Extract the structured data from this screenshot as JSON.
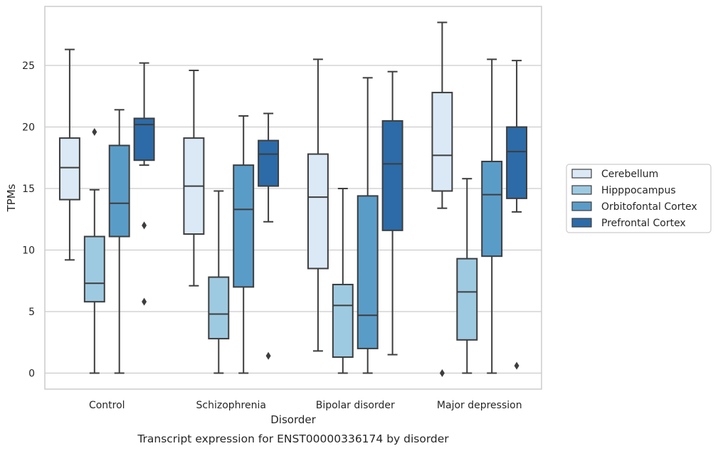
{
  "chart_data": {
    "type": "box",
    "title": "",
    "caption": "Transcript expression for ENST00000336174 by disorder",
    "xlabel": "Disorder",
    "ylabel": "TPMs",
    "ylim": [
      -1.3,
      29.8
    ],
    "yticks": [
      0,
      5,
      10,
      15,
      20,
      25
    ],
    "grid": "horizontal",
    "legend_position": "right",
    "categories": [
      "Control",
      "Schizophrenia",
      "Bipolar disorder",
      "Major depression"
    ],
    "series": [
      {
        "name": "Cerebellum",
        "color": "#dbe9f6",
        "boxes": [
          {
            "whisker_low": 9.2,
            "q1": 14.1,
            "median": 16.7,
            "q3": 19.1,
            "whisker_high": 26.3,
            "outliers": []
          },
          {
            "whisker_low": 7.1,
            "q1": 11.3,
            "median": 15.2,
            "q3": 19.1,
            "whisker_high": 24.6,
            "outliers": []
          },
          {
            "whisker_low": 1.8,
            "q1": 8.5,
            "median": 14.3,
            "q3": 17.8,
            "whisker_high": 25.5,
            "outliers": []
          },
          {
            "whisker_low": 13.4,
            "q1": 14.8,
            "median": 17.7,
            "q3": 22.8,
            "whisker_high": 28.5,
            "outliers": [
              0.0
            ]
          }
        ]
      },
      {
        "name": "Hipppocampus",
        "color": "#9ecae1",
        "boxes": [
          {
            "whisker_low": 0.0,
            "q1": 5.8,
            "median": 7.3,
            "q3": 11.1,
            "whisker_high": 14.9,
            "outliers": [
              19.6
            ]
          },
          {
            "whisker_low": 0.0,
            "q1": 2.8,
            "median": 4.8,
            "q3": 7.8,
            "whisker_high": 14.8,
            "outliers": []
          },
          {
            "whisker_low": 0.0,
            "q1": 1.3,
            "median": 5.5,
            "q3": 7.2,
            "whisker_high": 15.0,
            "outliers": []
          },
          {
            "whisker_low": 0.0,
            "q1": 2.7,
            "median": 6.6,
            "q3": 9.3,
            "whisker_high": 15.8,
            "outliers": []
          }
        ]
      },
      {
        "name": "Orbitofontal Cortex",
        "color": "#5a9cc8",
        "boxes": [
          {
            "whisker_low": 0.0,
            "q1": 11.1,
            "median": 13.8,
            "q3": 18.5,
            "whisker_high": 21.4,
            "outliers": []
          },
          {
            "whisker_low": 0.0,
            "q1": 7.0,
            "median": 13.3,
            "q3": 16.9,
            "whisker_high": 20.9,
            "outliers": []
          },
          {
            "whisker_low": 0.0,
            "q1": 2.0,
            "median": 4.7,
            "q3": 14.4,
            "whisker_high": 24.0,
            "outliers": []
          },
          {
            "whisker_low": 0.0,
            "q1": 9.5,
            "median": 14.5,
            "q3": 17.2,
            "whisker_high": 25.5,
            "outliers": []
          }
        ]
      },
      {
        "name": "Prefrontal Cortex",
        "color": "#2c6ba8",
        "boxes": [
          {
            "whisker_low": 16.9,
            "q1": 17.3,
            "median": 20.2,
            "q3": 20.7,
            "whisker_high": 25.2,
            "outliers": [
              12.0,
              5.8
            ]
          },
          {
            "whisker_low": 12.3,
            "q1": 15.2,
            "median": 17.8,
            "q3": 18.9,
            "whisker_high": 21.1,
            "outliers": [
              1.4
            ]
          },
          {
            "whisker_low": 1.5,
            "q1": 11.6,
            "median": 17.0,
            "q3": 20.5,
            "whisker_high": 24.5,
            "outliers": []
          },
          {
            "whisker_low": 13.1,
            "q1": 14.2,
            "median": 18.0,
            "q3": 20.0,
            "whisker_high": 25.4,
            "outliers": [
              0.6
            ]
          }
        ]
      }
    ]
  }
}
